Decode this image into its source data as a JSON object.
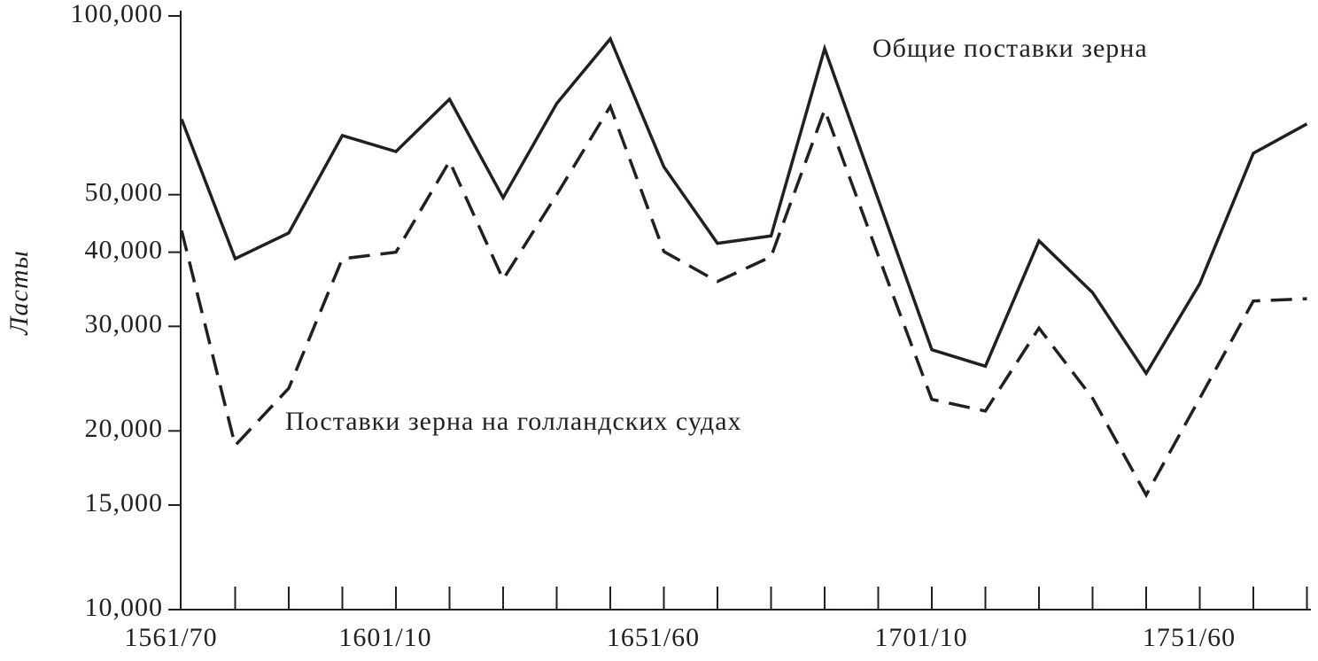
{
  "chart_data": {
    "type": "line",
    "ylabel": "Ласты",
    "log_scale": true,
    "categories": [
      "1561/70",
      null,
      null,
      null,
      "1601/10",
      null,
      null,
      null,
      null,
      "1651/60",
      null,
      null,
      null,
      null,
      "1701/10",
      null,
      null,
      null,
      null,
      "1751/60",
      null,
      null
    ],
    "series": [
      {
        "name": "Общие поставки зерна",
        "color": "#231f20",
        "dash": false,
        "values": [
          67000,
          39000,
          43100,
          62900,
          59100,
          72400,
          49400,
          71200,
          91500,
          55700,
          41400,
          42600,
          88100,
          49100,
          27400,
          25700,
          41800,
          34200,
          25000,
          35400,
          58700,
          65800
        ]
      },
      {
        "name": "Поставки зерна на голландских судах",
        "color": "#231f20",
        "dash": true,
        "values": [
          43500,
          18900,
          23600,
          39000,
          40000,
          56900,
          36000,
          50000,
          70400,
          40100,
          35700,
          39300,
          69500,
          39500,
          22600,
          21600,
          29800,
          22700,
          15600,
          22700,
          33100,
          33400
        ]
      }
    ],
    "ylim": [
      10000,
      100000
    ],
    "yticks": [
      {
        "value": 10000,
        "label": "10,000"
      },
      {
        "value": 15000,
        "label": "15,000"
      },
      {
        "value": 20000,
        "label": "20,000"
      },
      {
        "value": 30000,
        "label": "30,000"
      },
      {
        "value": 40000,
        "label": "40,000"
      },
      {
        "value": 50000,
        "label": "50,000"
      },
      {
        "value": 100000,
        "label": "100,000"
      }
    ]
  }
}
